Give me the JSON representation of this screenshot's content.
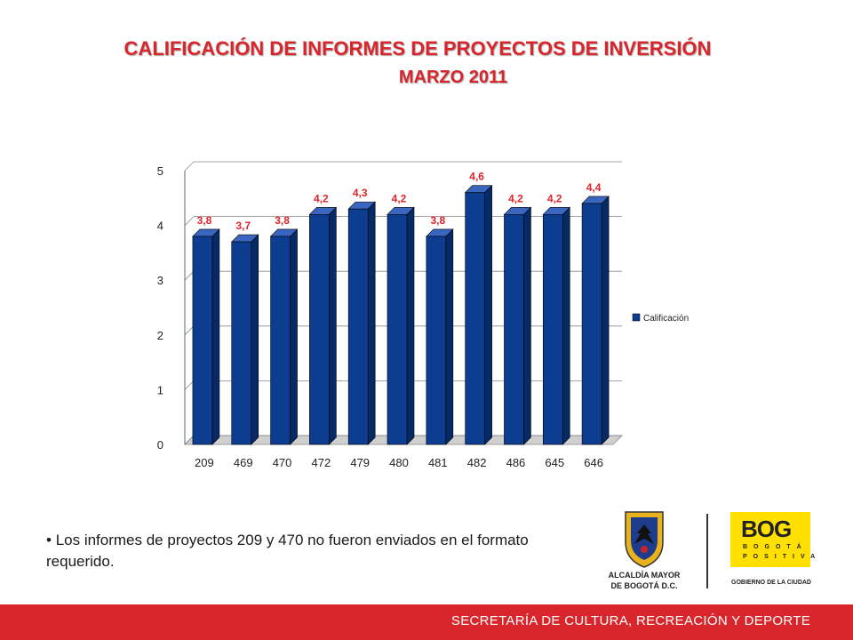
{
  "title": "CALIFICACIÓN DE INFORMES DE PROYECTOS DE INVERSIÓN",
  "subtitle": "MARZO 2011",
  "chart_data": {
    "type": "bar",
    "categories": [
      "209",
      "469",
      "470",
      "472",
      "479",
      "480",
      "481",
      "482",
      "486",
      "645",
      "646"
    ],
    "series": [
      {
        "name": "Calificación",
        "values": [
          3.8,
          3.7,
          3.8,
          4.2,
          4.3,
          4.2,
          3.8,
          4.6,
          4.2,
          4.2,
          4.4
        ]
      }
    ],
    "data_labels": [
      "3,8",
      "3,7",
      "3,8",
      "4,2",
      "4,3",
      "4,2",
      "3,8",
      "4,6",
      "4,2",
      "4,2",
      "4,4"
    ],
    "y_ticks": [
      "0",
      "1",
      "2",
      "3",
      "4",
      "5"
    ],
    "ylim": [
      0,
      5
    ],
    "grid": true,
    "legend_position": "right",
    "bar_color": "#0c3d91",
    "label_color": "#e0242a",
    "three_d": true
  },
  "note": "Los informes de proyectos  209 y 470 no fueron enviados en el formato requerido.",
  "logos": {
    "left_line1": "ALCALDÍA MAYOR",
    "left_line2": "DE BOGOTÁ D.C.",
    "right_main": "BOG",
    "right_sub1": "BOGOTÁ",
    "right_sub2": "POSITIVA",
    "right_caption": "GOBIERNO DE LA CIUDAD"
  },
  "footer": "SECRETARÍA DE CULTURA, RECREACIÓN Y DEPORTE",
  "colors": {
    "accent": "#d9262c",
    "bar": "#0c3d91",
    "logo_yellow": "#ffe000"
  }
}
